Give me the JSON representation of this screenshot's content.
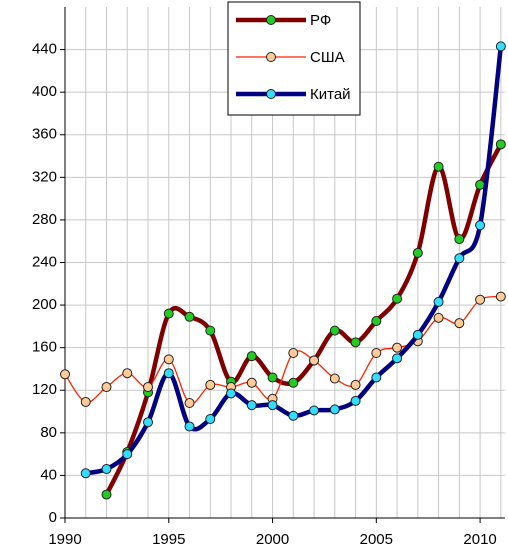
{
  "chart_data": {
    "type": "line",
    "x": [
      1990,
      1991,
      1992,
      1993,
      1994,
      1995,
      1996,
      1997,
      1998,
      1999,
      2000,
      2001,
      2002,
      2003,
      2004,
      2005,
      2006,
      2007,
      2008,
      2009,
      2010,
      2011
    ],
    "series": [
      {
        "name": "РФ",
        "color": "#800000",
        "marker": "#22cc22",
        "width": 4.5,
        "values": [
          null,
          null,
          22,
          62,
          118,
          192,
          189,
          176,
          128,
          152,
          132,
          127,
          148,
          176,
          165,
          185,
          206,
          249,
          330,
          262,
          313,
          351
        ]
      },
      {
        "name": "США",
        "color": "#ff2200",
        "marker": "#ffcc99",
        "width": 1.3,
        "values": [
          135,
          109,
          123,
          136,
          123,
          149,
          108,
          125,
          123,
          127,
          112,
          155,
          148,
          131,
          125,
          155,
          160,
          166,
          188,
          183,
          205,
          208
        ]
      },
      {
        "name": "Китай",
        "color": "#000080",
        "marker": "#33ddff",
        "width": 4.5,
        "values": [
          null,
          42,
          46,
          60,
          90,
          136,
          86,
          93,
          117,
          106,
          106,
          96,
          101,
          102,
          110,
          132,
          150,
          172,
          203,
          244,
          275,
          443
        ]
      }
    ],
    "xlim": [
      1990,
      2011.2
    ],
    "xticks": [
      1990,
      1995,
      2000,
      2005,
      2010
    ],
    "ylim": [
      0,
      480
    ],
    "yticks": [
      0,
      40,
      80,
      120,
      160,
      200,
      240,
      280,
      320,
      360,
      400,
      440
    ],
    "grid": true,
    "legend": "top"
  }
}
